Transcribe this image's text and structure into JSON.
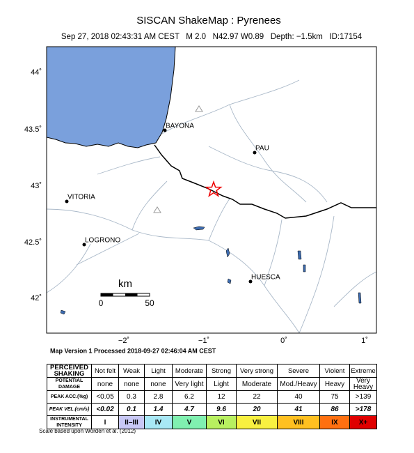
{
  "header": {
    "title": "SISCAN ShakeMap : Pyrenees",
    "subtitle": "Sep 27, 2018 02:43:31 AM CEST   M 2.0   N42.97 W0.89   Depth: −1.5km   ID:17154"
  },
  "map": {
    "lat_labels": [
      "44˚",
      "43.5˚",
      "43˚",
      "42.5˚",
      "42˚"
    ],
    "lon_labels": [
      "−2˚",
      "−1˚",
      "0˚",
      "1˚"
    ],
    "cities": [
      "BAYONA",
      "PAU",
      "VITORIA",
      "LOGRONO",
      "HUESCA"
    ],
    "scale": {
      "unit": "km",
      "labels": [
        "0",
        "50"
      ]
    }
  },
  "footer": "Map Version 1 Processed 2018-09-27 02:46:04 AM CEST",
  "legend": {
    "rows": [
      {
        "label": "PERCEIVED SHAKING",
        "cells": [
          "Not felt",
          "Weak",
          "Light",
          "Moderate",
          "Strong",
          "Very strong",
          "Severe",
          "Violent",
          "Extreme"
        ]
      },
      {
        "label": "POTENTIAL DAMAGE",
        "cells": [
          "none",
          "none",
          "none",
          "Very light",
          "Light",
          "Moderate",
          "Mod./Heavy",
          "Heavy",
          "Very Heavy"
        ]
      },
      {
        "label": "PEAK ACC.(%g)",
        "cells": [
          "<0.05",
          "0.3",
          "2.8",
          "6.2",
          "12",
          "22",
          "40",
          "75",
          ">139"
        ]
      },
      {
        "label": "PEAK VEL.(cm/s)",
        "cells": [
          "<0.02",
          "0.1",
          "1.4",
          "4.7",
          "9.6",
          "20",
          "41",
          "86",
          ">178"
        ]
      },
      {
        "label": "INSTRUMENTAL INTENSITY",
        "cells": [
          "I",
          "II–III",
          "IV",
          "V",
          "VI",
          "VII",
          "VIII",
          "IX",
          "X+"
        ]
      }
    ]
  },
  "note": "Scale based upon Worden et al. (2012)"
}
